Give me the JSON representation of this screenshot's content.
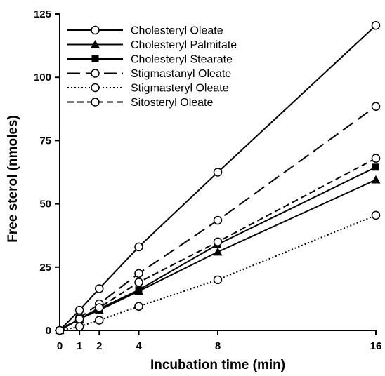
{
  "chart_data": {
    "type": "line",
    "title": "",
    "xlabel": "Incubation time (min)",
    "ylabel": "Free sterol (nmoles)",
    "x_ticks": [
      0,
      1,
      2,
      4,
      8,
      16
    ],
    "y_ticks": [
      0,
      25,
      50,
      75,
      100,
      125
    ],
    "xlim": [
      0,
      16
    ],
    "ylim": [
      0,
      125
    ],
    "grid": false,
    "legend_position": "top-left",
    "series": [
      {
        "name": "Cholesteryl Oleate",
        "marker": "open-circle",
        "dash": "solid",
        "x": [
          0,
          1,
          2,
          4,
          8,
          16
        ],
        "y": [
          0,
          8,
          16.5,
          33,
          62.5,
          120.5
        ]
      },
      {
        "name": "Cholesteryl Palmitate",
        "marker": "filled-triangle",
        "dash": "solid",
        "x": [
          0,
          1,
          2,
          4,
          8,
          16
        ],
        "y": [
          0,
          4.5,
          8,
          15.5,
          31,
          59.5
        ]
      },
      {
        "name": "Cholesteryl Stearate",
        "marker": "filled-square",
        "dash": "solid",
        "x": [
          0,
          1,
          2,
          4,
          8,
          16
        ],
        "y": [
          0,
          4.5,
          8.5,
          16,
          34,
          64.5
        ]
      },
      {
        "name": "Stigmastanyl Oleate",
        "marker": "open-circle",
        "dash": "long-dash",
        "x": [
          0,
          1,
          2,
          4,
          8,
          16
        ],
        "y": [
          0,
          5,
          10.5,
          22.5,
          43.5,
          88.5
        ]
      },
      {
        "name": "Stigmasteryl Oleate",
        "marker": "open-circle",
        "dash": "dotted",
        "x": [
          0,
          1,
          2,
          4,
          8,
          16
        ],
        "y": [
          0,
          1.5,
          4,
          9.5,
          20,
          45.5
        ]
      },
      {
        "name": "Sitosteryl Oleate",
        "marker": "open-circle",
        "dash": "short-dash",
        "x": [
          0,
          1,
          2,
          4,
          8,
          16
        ],
        "y": [
          0,
          4.5,
          9,
          19,
          35,
          68
        ]
      }
    ]
  }
}
